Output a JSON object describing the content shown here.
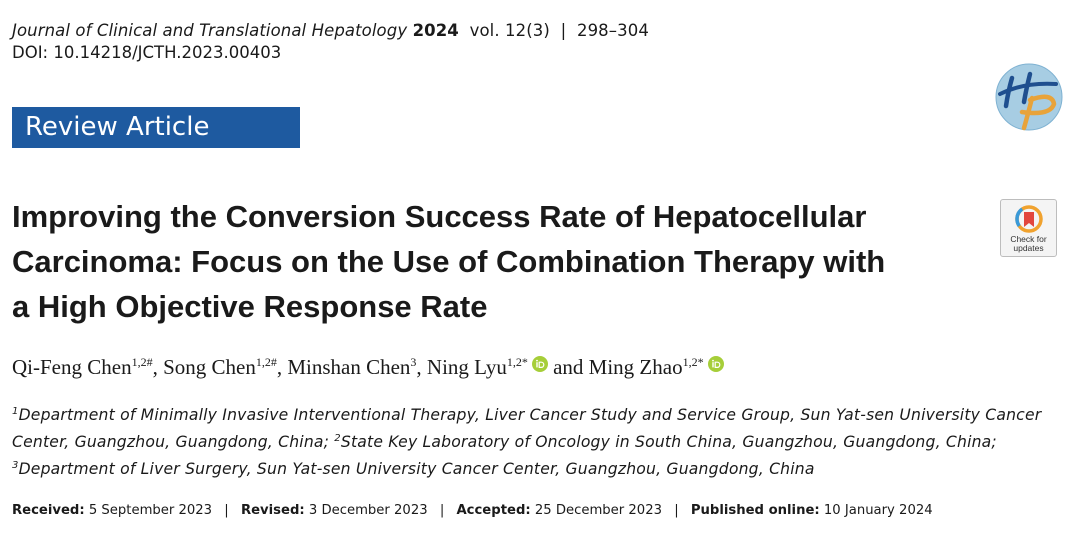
{
  "header": {
    "journal_name": "Journal of Clinical and Translational Hepatology",
    "year": "2024",
    "volume": "vol. 12(3)",
    "separator": "|",
    "pages": "298–304",
    "doi": "DOI: 10.14218/JCTH.2023.00403"
  },
  "logo": {
    "icon": "journal-hp-logo-icon",
    "colors": {
      "circle": "#a7cde3",
      "h": "#1f4f8f",
      "p": "#e8a33a"
    }
  },
  "article_type": "Review Article",
  "article_type_color": "#1e5aa0",
  "title_lines": [
    "Improving the Conversion Success Rate of Hepatocellular",
    "Carcinoma: Focus on the Use of Combination Therapy with",
    "a High Objective Response Rate"
  ],
  "check_updates": {
    "line1": "Check for",
    "line2": "updates",
    "icon": "bookmark-icon"
  },
  "authors": [
    {
      "name": "Qi-Feng Chen",
      "sup": "1,2#",
      "sep": ", ",
      "orcid": false
    },
    {
      "name": "Song Chen",
      "sup": "1,2#",
      "sep": ", ",
      "orcid": false
    },
    {
      "name": "Minshan Chen",
      "sup": "3",
      "sep": ", ",
      "orcid": false
    },
    {
      "name": "Ning Lyu",
      "sup": "1,2*",
      "sep": " and ",
      "orcid": true
    },
    {
      "name": "Ming Zhao",
      "sup": "1,2*",
      "sep": "",
      "orcid": true
    }
  ],
  "orcid_color": "#a6ce39",
  "affiliations": {
    "a1_num": "1",
    "a1_text": "Department of Minimally Invasive Interventional Therapy, Liver Cancer Study and Service Group, Sun Yat-sen University Cancer Center, Guangzhou, Guangdong, China; ",
    "a2_num": "2",
    "a2_text": "State Key Laboratory of Oncology in South China, Guangzhou, Guangdong, China; ",
    "a3_num": "3",
    "a3_text": "Department of Liver Surgery, Sun Yat-sen University Cancer Center, Guangzhou, Guangdong, China"
  },
  "dates": {
    "received_label": "Received:",
    "received": "5 September 2023",
    "revised_label": "Revised:",
    "revised": "3 December 2023",
    "accepted_label": "Accepted:",
    "accepted": "25 December 2023",
    "published_label": "Published online:",
    "published": "10 January 2024",
    "separator": "|"
  }
}
